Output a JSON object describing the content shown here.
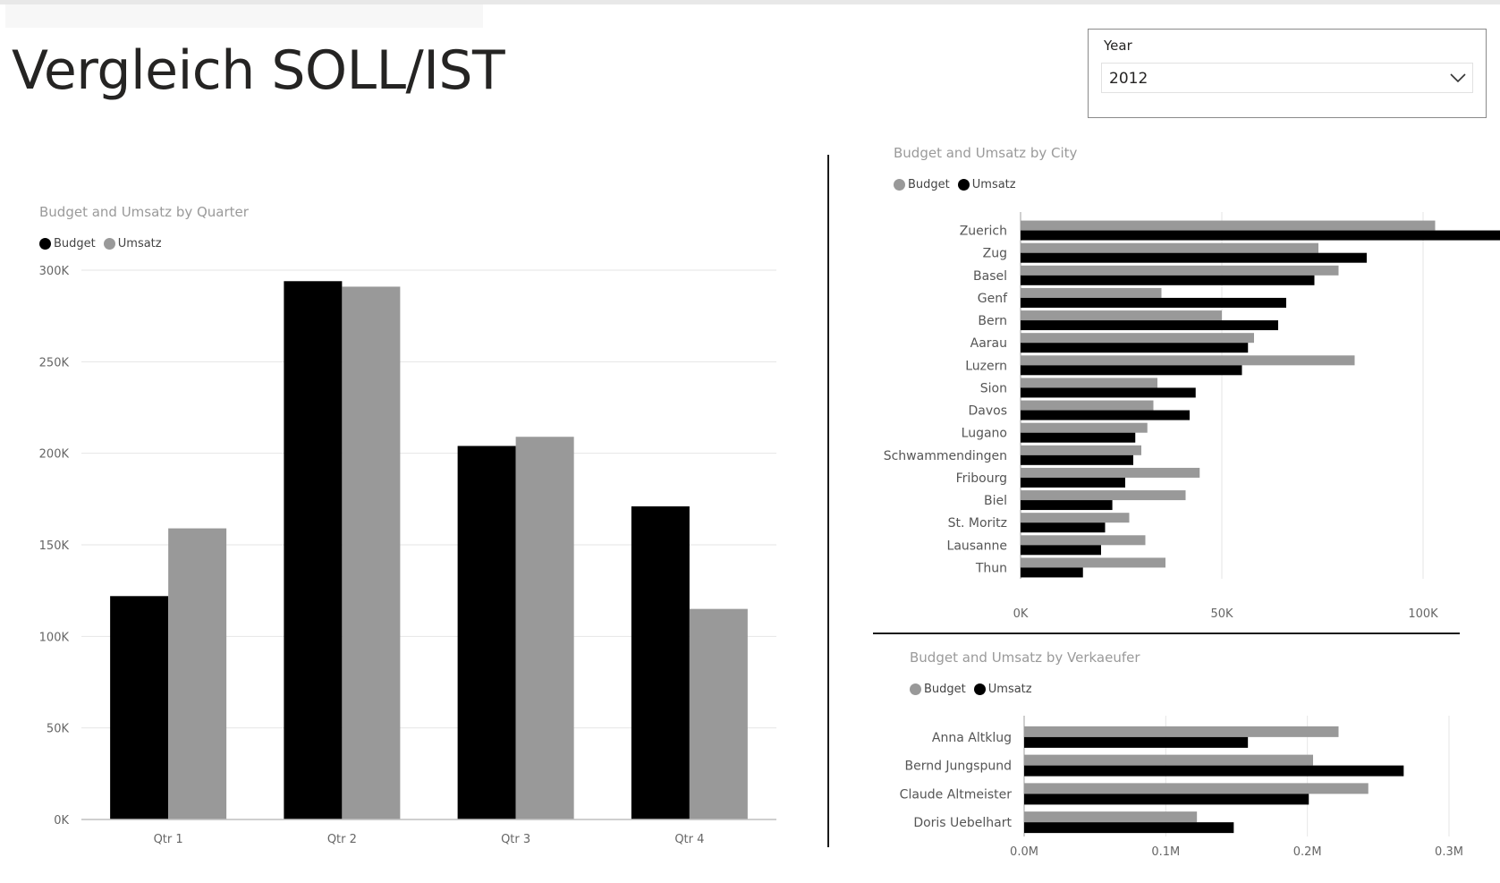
{
  "page": {
    "title": "Vergleich SOLL/IST"
  },
  "slicer": {
    "label": "Year",
    "value": "2012",
    "icon": "chevron-down-icon"
  },
  "colors": {
    "black": "#000000",
    "gray": "#999999",
    "grid": "#e6e6e6",
    "axis_text": "#666666"
  },
  "chart_data": [
    {
      "id": "quarter",
      "type": "bar",
      "orientation": "vertical",
      "title": "Budget and Umsatz by Quarter",
      "categories": [
        "Qtr 1",
        "Qtr 2",
        "Qtr 3",
        "Qtr 4"
      ],
      "series": [
        {
          "name": "Budget",
          "color": "#000000",
          "values": [
            122000,
            294000,
            204000,
            171000
          ]
        },
        {
          "name": "Umsatz",
          "color": "#999999",
          "values": [
            159000,
            291000,
            209000,
            115000
          ]
        }
      ],
      "ylim": [
        0,
        300000
      ],
      "yticks": [
        0,
        50000,
        100000,
        150000,
        200000,
        250000,
        300000
      ],
      "ytick_labels": [
        "0K",
        "50K",
        "100K",
        "150K",
        "200K",
        "250K",
        "300K"
      ],
      "grid": true,
      "legend": "top-left"
    },
    {
      "id": "city",
      "type": "bar",
      "orientation": "horizontal",
      "title": "Budget and Umsatz by City",
      "categories": [
        "Zuerich",
        "Zug",
        "Basel",
        "Genf",
        "Bern",
        "Aarau",
        "Luzern",
        "Sion",
        "Davos",
        "Lugano",
        "Schwammendingen",
        "Fribourg",
        "Biel",
        "St. Moritz",
        "Lausanne",
        "Thun"
      ],
      "series": [
        {
          "name": "Budget",
          "color": "#999999",
          "values": [
            103000,
            74000,
            79000,
            35000,
            50000,
            58000,
            83000,
            34000,
            33000,
            31500,
            30000,
            44500,
            41000,
            27000,
            31000,
            36000
          ]
        },
        {
          "name": "Umsatz",
          "color": "#000000",
          "values": [
            125000,
            86000,
            73000,
            66000,
            64000,
            56500,
            55000,
            43500,
            42000,
            28500,
            28000,
            26000,
            22800,
            21000,
            20000,
            15500
          ]
        }
      ],
      "xlim": [
        0,
        150000
      ],
      "xticks": [
        0,
        50000,
        100000
      ],
      "xtick_labels": [
        "0K",
        "50K",
        "100K"
      ],
      "grid": true,
      "legend": "top-left"
    },
    {
      "id": "seller",
      "type": "bar",
      "orientation": "horizontal",
      "title": "Budget and Umsatz by Verkaeufer",
      "categories": [
        "Anna Altklug",
        "Bernd Jungspund",
        "Claude Altmeister",
        "Doris Uebelhart"
      ],
      "series": [
        {
          "name": "Budget",
          "color": "#999999",
          "values": [
            222000,
            204000,
            243000,
            122000
          ]
        },
        {
          "name": "Umsatz",
          "color": "#000000",
          "values": [
            158000,
            268000,
            201000,
            148000
          ]
        }
      ],
      "xlim": [
        0,
        300000
      ],
      "xticks": [
        0,
        100000,
        200000,
        300000
      ],
      "xtick_labels": [
        "0.0M",
        "0.1M",
        "0.2M",
        "0.3M"
      ],
      "grid": true,
      "legend": "top-left"
    }
  ]
}
